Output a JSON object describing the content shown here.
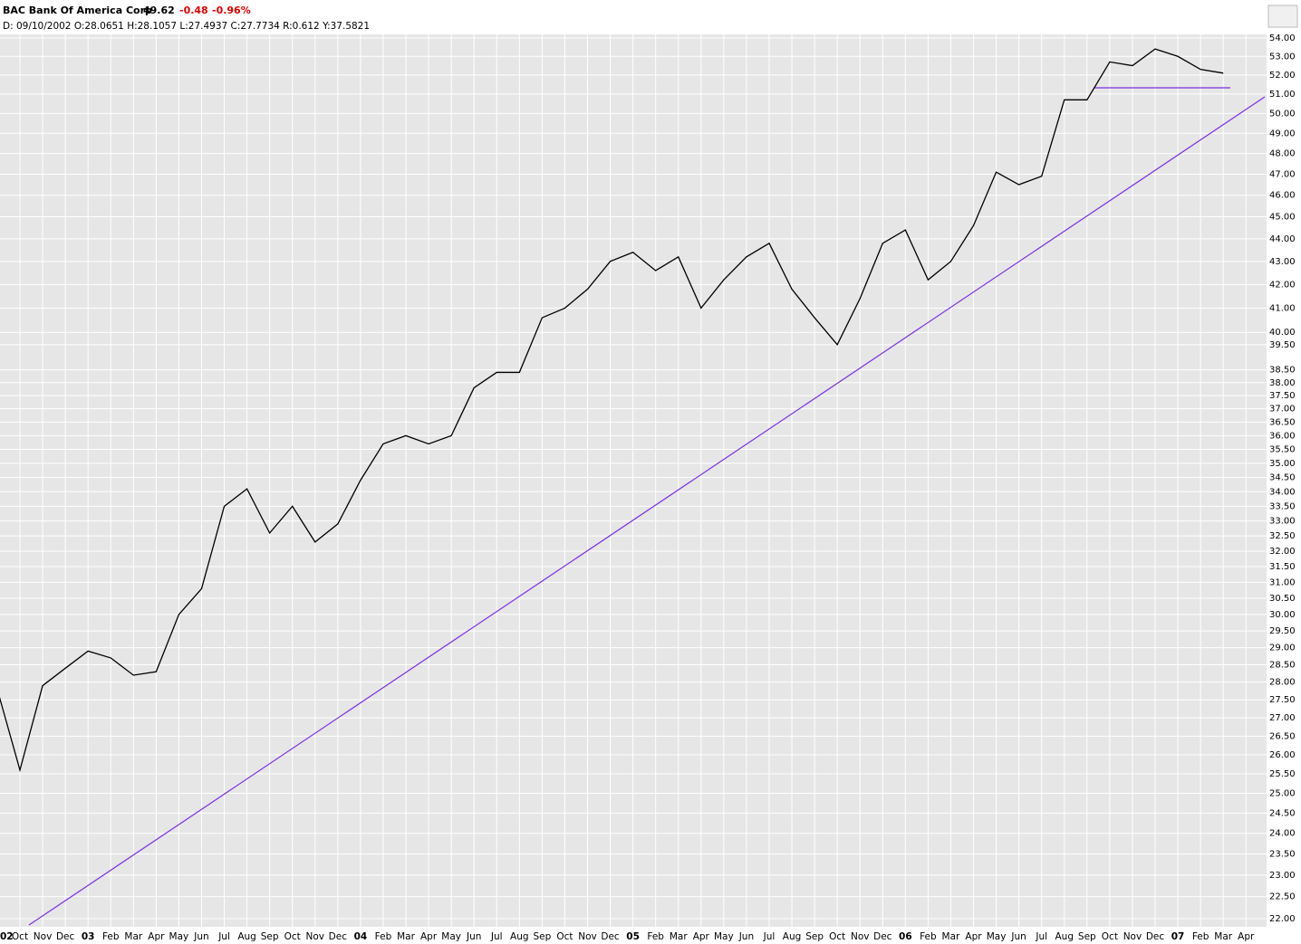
{
  "header": {
    "symbol": "BAC Bank Of America Corp",
    "last": "49.62",
    "change": "-0.48",
    "change_pct": "-0.96%",
    "detail": "D: 09/10/2002 O:28.0651 H:28.1057 L:27.4937 C:27.7734 R:0.612 Y:37.5821"
  },
  "chart_data": {
    "type": "line",
    "log_scale": true,
    "grid": true,
    "color": "#000000",
    "categories": [
      "02",
      "Oct",
      "Nov",
      "Dec",
      "03",
      "Feb",
      "Mar",
      "Apr",
      "May",
      "Jun",
      "Jul",
      "Aug",
      "Sep",
      "Oct",
      "Nov",
      "Dec",
      "04",
      "Feb",
      "Mar",
      "Apr",
      "May",
      "Jun",
      "Jul",
      "Aug",
      "Sep",
      "Oct",
      "Nov",
      "Dec",
      "05",
      "Feb",
      "Mar",
      "Apr",
      "May",
      "Jun",
      "Jul",
      "Aug",
      "Sep",
      "Oct",
      "Nov",
      "Dec",
      "06",
      "Feb",
      "Mar",
      "Apr",
      "May",
      "Jun",
      "Jul",
      "Aug",
      "Sep",
      "Oct",
      "Nov",
      "Dec",
      "07",
      "Feb",
      "Mar",
      "Apr"
    ],
    "series": [
      {
        "name": "BAC",
        "color": "#000000",
        "values": [
          27.8,
          25.6,
          27.9,
          28.4,
          28.9,
          28.7,
          28.2,
          28.3,
          30.0,
          30.8,
          33.5,
          34.1,
          32.6,
          33.5,
          32.3,
          32.9,
          34.4,
          35.7,
          36.0,
          35.7,
          36.0,
          37.8,
          38.4,
          38.4,
          40.6,
          41.0,
          41.8,
          43.0,
          43.4,
          42.6,
          43.2,
          41.0,
          42.2,
          43.2,
          43.8,
          41.8,
          40.6,
          39.5,
          41.4,
          43.8,
          44.4,
          42.2,
          43.0,
          44.6,
          47.1,
          46.5,
          46.9,
          50.7,
          50.7,
          52.7,
          52.5,
          53.4,
          53.0,
          52.3,
          52.1,
          null
        ]
      }
    ],
    "ylim": [
      22,
      54
    ],
    "yticks": [
      {
        "value": 22,
        "label": "22.00"
      },
      {
        "value": 22.5,
        "label": "22.50"
      },
      {
        "value": 23,
        "label": "23.00"
      },
      {
        "value": 23.5,
        "label": "23.50"
      },
      {
        "value": 24,
        "label": "24.00"
      },
      {
        "value": 24.5,
        "label": "24.50"
      },
      {
        "value": 25,
        "label": "25.00"
      },
      {
        "value": 25.5,
        "label": "25.50"
      },
      {
        "value": 26,
        "label": "26.00"
      },
      {
        "value": 26.5,
        "label": "26.50"
      },
      {
        "value": 27,
        "label": "27.00"
      },
      {
        "value": 27.5,
        "label": "27.50"
      },
      {
        "value": 28,
        "label": "28.00"
      },
      {
        "value": 28.5,
        "label": "28.50"
      },
      {
        "value": 29,
        "label": "29.00"
      },
      {
        "value": 29.5,
        "label": "29.50"
      },
      {
        "value": 30,
        "label": "30.00"
      },
      {
        "value": 30.5,
        "label": "30.50"
      },
      {
        "value": 31,
        "label": "31.00"
      },
      {
        "value": 31.5,
        "label": "31.50"
      },
      {
        "value": 32,
        "label": "32.00"
      },
      {
        "value": 32.5,
        "label": "32.50"
      },
      {
        "value": 33,
        "label": "33.00"
      },
      {
        "value": 33.5,
        "label": "33.50"
      },
      {
        "value": 34,
        "label": "34.00"
      },
      {
        "value": 34.5,
        "label": "34.50"
      },
      {
        "value": 35,
        "label": "35.00"
      },
      {
        "value": 35.5,
        "label": "35.50"
      },
      {
        "value": 36,
        "label": "36.00"
      },
      {
        "value": 36.5,
        "label": "36.50"
      },
      {
        "value": 37,
        "label": "37.00"
      },
      {
        "value": 37.5,
        "label": "37.50"
      },
      {
        "value": 38,
        "label": "38.00"
      },
      {
        "value": 38.5,
        "label": "38.50"
      },
      {
        "value": 39.5,
        "label": "39.50"
      },
      {
        "value": 40,
        "label": "40.00"
      },
      {
        "value": 41,
        "label": "41.00"
      },
      {
        "value": 42,
        "label": "42.00"
      },
      {
        "value": 43,
        "label": "43.00"
      },
      {
        "value": 44,
        "label": "44.00"
      },
      {
        "value": 45,
        "label": "45.00"
      },
      {
        "value": 46,
        "label": "46.00"
      },
      {
        "value": 47,
        "label": "47.00"
      },
      {
        "value": 48,
        "label": "48.00"
      },
      {
        "value": 49,
        "label": "49.00"
      },
      {
        "value": 50,
        "label": "50.00"
      },
      {
        "value": 51,
        "label": "51.00"
      },
      {
        "value": 52,
        "label": "52.00"
      },
      {
        "value": 53,
        "label": "53.00"
      },
      {
        "value": 54,
        "label": "54.00"
      }
    ]
  }
}
